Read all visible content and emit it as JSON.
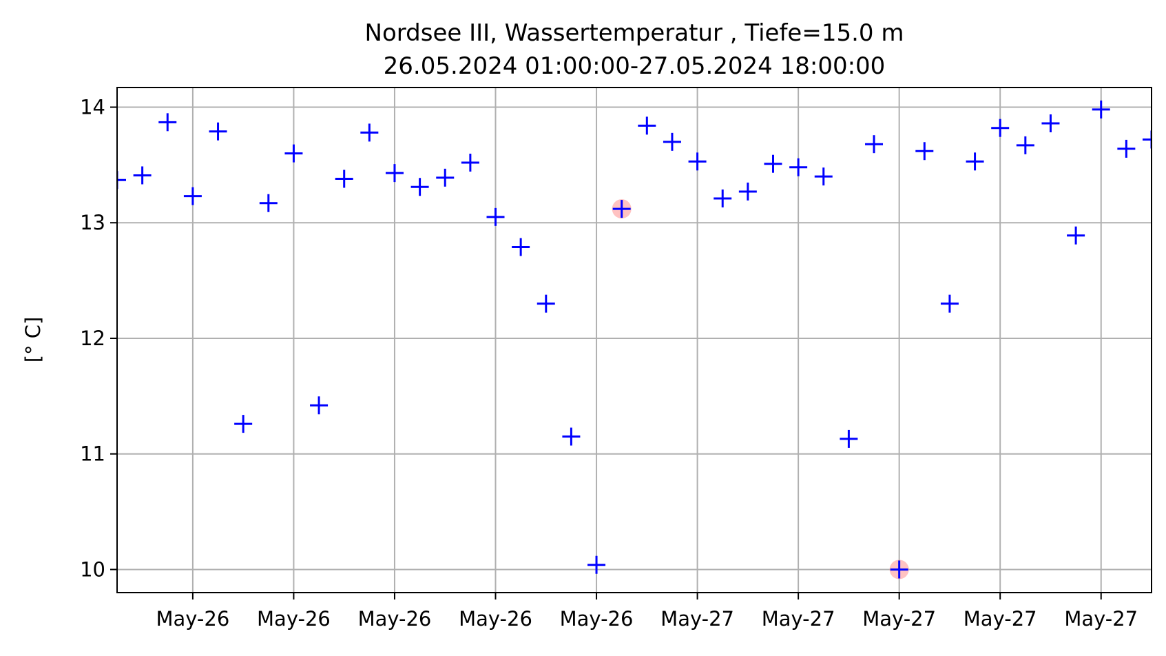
{
  "chart_data": {
    "type": "scatter",
    "title": "Nordsee III, Wassertemperatur , Tiefe=15.0 m",
    "subtitle": "26.05.2024 01:00:00-27.05.2024 18:00:00",
    "xlabel": "",
    "ylabel": "[° C]",
    "x_start": "2024-05-26 01:00",
    "x_end": "2024-05-27 18:00",
    "ylim": [
      9.8,
      14.17
    ],
    "y_ticks": [
      10,
      11,
      12,
      13,
      14
    ],
    "x_ticks": [
      {
        "x": "2024-05-26 04:00",
        "label": "May-26"
      },
      {
        "x": "2024-05-26 08:00",
        "label": "May-26"
      },
      {
        "x": "2024-05-26 12:00",
        "label": "May-26"
      },
      {
        "x": "2024-05-26 16:00",
        "label": "May-26"
      },
      {
        "x": "2024-05-26 20:00",
        "label": "May-26"
      },
      {
        "x": "2024-05-27 00:00",
        "label": "May-27"
      },
      {
        "x": "2024-05-27 04:00",
        "label": "May-27"
      },
      {
        "x": "2024-05-27 08:00",
        "label": "May-27"
      },
      {
        "x": "2024-05-27 12:00",
        "label": "May-27"
      },
      {
        "x": "2024-05-27 16:00",
        "label": "May-27"
      }
    ],
    "grid": true,
    "marker_color": "#0000ff",
    "highlight_color": "#ff9999",
    "points": [
      {
        "x": "2024-05-26 01:00",
        "y": 13.37
      },
      {
        "x": "2024-05-26 02:00",
        "y": 13.41
      },
      {
        "x": "2024-05-26 03:00",
        "y": 13.87
      },
      {
        "x": "2024-05-26 04:00",
        "y": 13.23
      },
      {
        "x": "2024-05-26 05:00",
        "y": 13.79
      },
      {
        "x": "2024-05-26 06:00",
        "y": 11.26
      },
      {
        "x": "2024-05-26 07:00",
        "y": 13.17
      },
      {
        "x": "2024-05-26 08:00",
        "y": 13.6
      },
      {
        "x": "2024-05-26 09:00",
        "y": 11.42
      },
      {
        "x": "2024-05-26 10:00",
        "y": 13.38
      },
      {
        "x": "2024-05-26 11:00",
        "y": 13.78
      },
      {
        "x": "2024-05-26 12:00",
        "y": 13.43
      },
      {
        "x": "2024-05-26 13:00",
        "y": 13.31
      },
      {
        "x": "2024-05-26 14:00",
        "y": 13.39
      },
      {
        "x": "2024-05-26 15:00",
        "y": 13.52
      },
      {
        "x": "2024-05-26 16:00",
        "y": 13.05
      },
      {
        "x": "2024-05-26 17:00",
        "y": 12.79
      },
      {
        "x": "2024-05-26 18:00",
        "y": 12.3
      },
      {
        "x": "2024-05-26 19:00",
        "y": 11.15
      },
      {
        "x": "2024-05-26 20:00",
        "y": 10.04
      },
      {
        "x": "2024-05-26 21:00",
        "y": 13.12,
        "flagged": true
      },
      {
        "x": "2024-05-26 22:00",
        "y": 13.84
      },
      {
        "x": "2024-05-26 23:00",
        "y": 13.7
      },
      {
        "x": "2024-05-27 00:00",
        "y": 13.53
      },
      {
        "x": "2024-05-27 01:00",
        "y": 13.21
      },
      {
        "x": "2024-05-27 02:00",
        "y": 13.27
      },
      {
        "x": "2024-05-27 03:00",
        "y": 13.51
      },
      {
        "x": "2024-05-27 04:00",
        "y": 13.48
      },
      {
        "x": "2024-05-27 05:00",
        "y": 13.4
      },
      {
        "x": "2024-05-27 06:00",
        "y": 11.13
      },
      {
        "x": "2024-05-27 07:00",
        "y": 13.68
      },
      {
        "x": "2024-05-27 08:00",
        "y": 10.0,
        "flagged": true
      },
      {
        "x": "2024-05-27 09:00",
        "y": 13.62
      },
      {
        "x": "2024-05-27 10:00",
        "y": 12.3
      },
      {
        "x": "2024-05-27 11:00",
        "y": 13.53
      },
      {
        "x": "2024-05-27 12:00",
        "y": 13.82
      },
      {
        "x": "2024-05-27 13:00",
        "y": 13.67
      },
      {
        "x": "2024-05-27 14:00",
        "y": 13.86
      },
      {
        "x": "2024-05-27 15:00",
        "y": 12.89
      },
      {
        "x": "2024-05-27 16:00",
        "y": 13.98
      },
      {
        "x": "2024-05-27 17:00",
        "y": 13.64
      },
      {
        "x": "2024-05-27 18:00",
        "y": 13.72
      }
    ]
  }
}
